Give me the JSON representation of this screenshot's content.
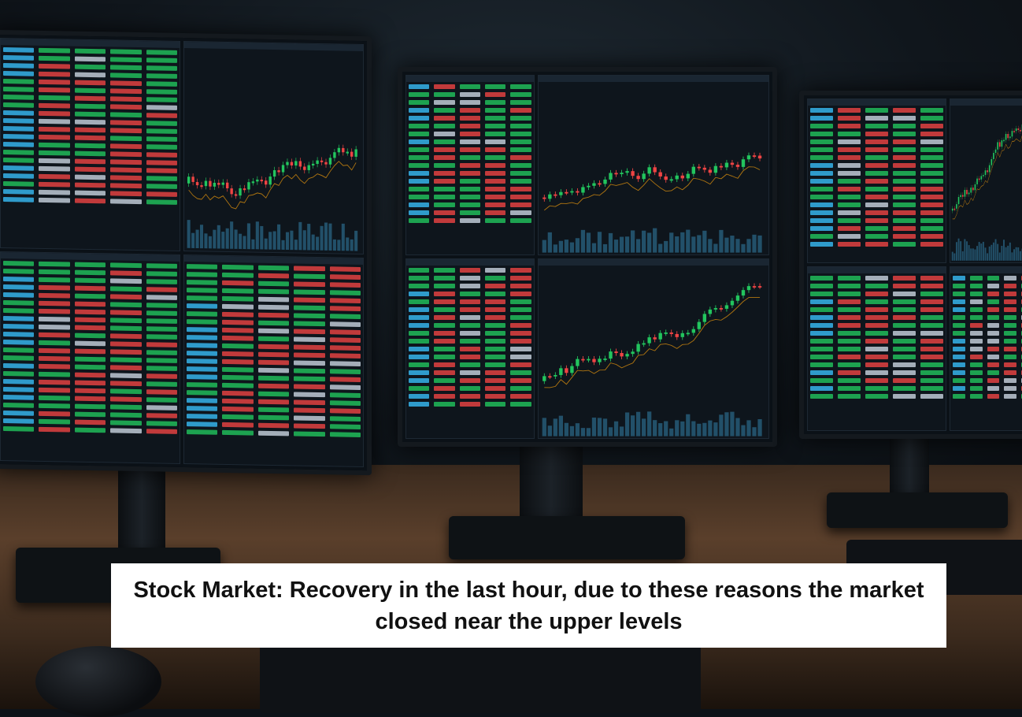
{
  "caption": {
    "headline": "Stock Market: Recovery in the last hour, due to these reasons the market closed near the upper levels"
  },
  "colors": {
    "up": "#22c55e",
    "down": "#ef4444",
    "accent": "#38bdf8",
    "caption_background": "#ffffff",
    "caption_text": "#111111"
  }
}
